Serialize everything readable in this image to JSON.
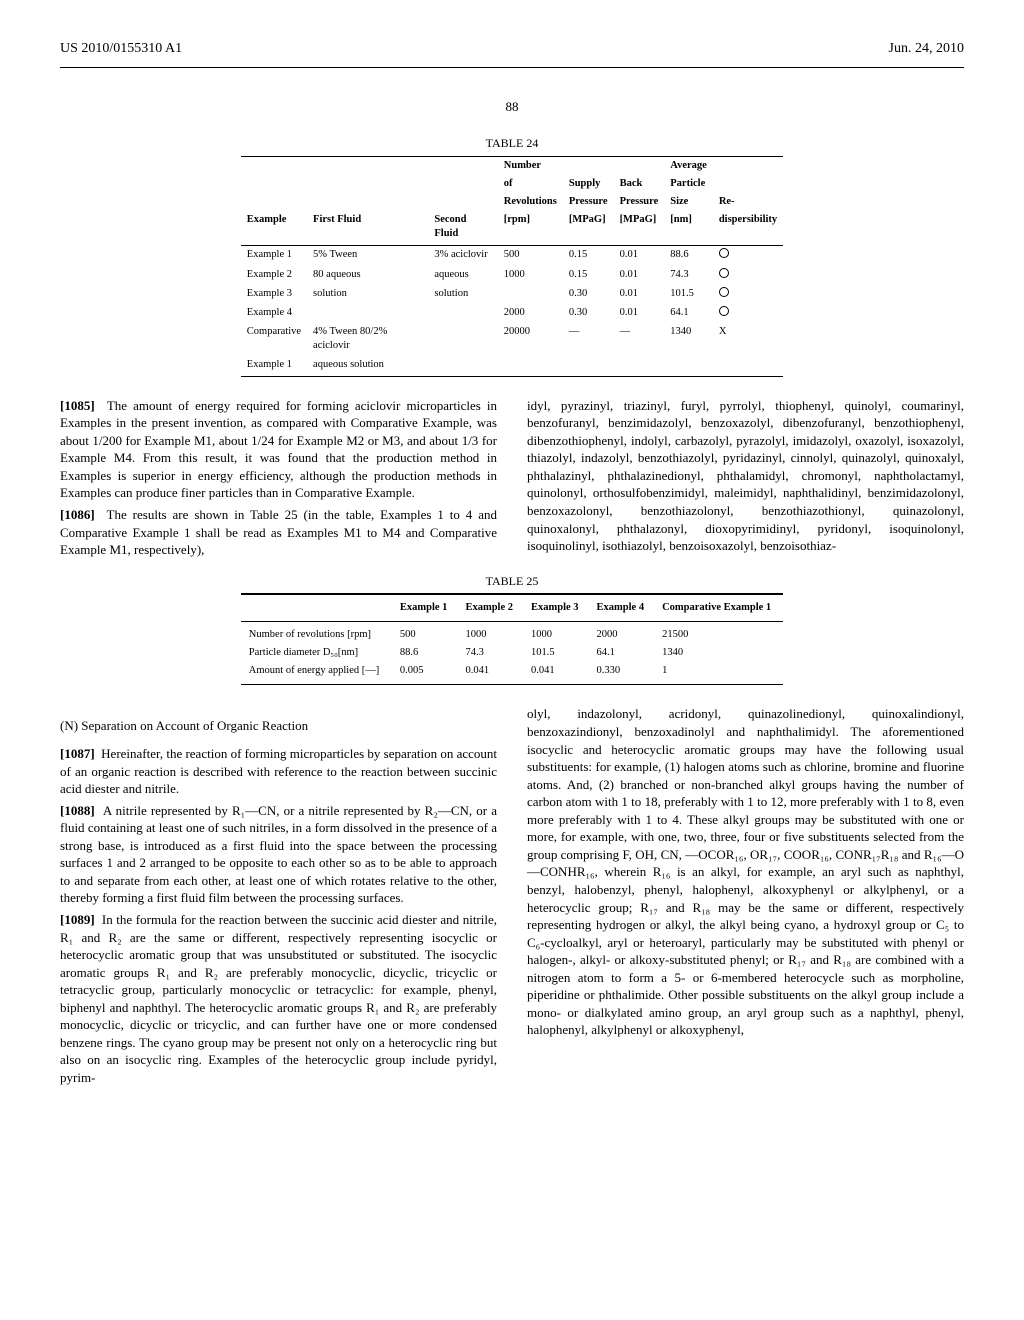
{
  "header": {
    "left": "US 2010/0155310 A1",
    "right": "Jun. 24, 2010"
  },
  "pageNumber": "88",
  "table24": {
    "title": "TABLE 24",
    "headers": {
      "r1": [
        "",
        "",
        "",
        "Number",
        "",
        "",
        "Average",
        ""
      ],
      "r2": [
        "",
        "",
        "",
        "of",
        "Supply",
        "Back",
        "Particle",
        ""
      ],
      "r3": [
        "",
        "",
        "",
        "Revolutions",
        "Pressure",
        "Pressure",
        "Size",
        "Re-"
      ],
      "r4": [
        "Example",
        "First Fluid",
        "Second Fluid",
        "[rpm]",
        "[MPaG]",
        "[MPaG]",
        "[nm]",
        "dispersibility"
      ]
    },
    "rows": [
      [
        "Example 1",
        "5% Tween",
        "3% aciclovir",
        "500",
        "0.15",
        "0.01",
        "88.6",
        "○"
      ],
      [
        "Example 2",
        "80 aqueous",
        "aqueous",
        "1000",
        "0.15",
        "0.01",
        "74.3",
        "○"
      ],
      [
        "Example 3",
        "solution",
        "solution",
        "",
        "0.30",
        "0.01",
        "101.5",
        "○"
      ],
      [
        "Example 4",
        "",
        "",
        "2000",
        "0.30",
        "0.01",
        "64.1",
        "○"
      ],
      [
        "Comparative",
        "4% Tween 80/2% aciclovir",
        "",
        "20000",
        "—",
        "—",
        "1340",
        "X"
      ],
      [
        "Example 1",
        "aqueous solution",
        "",
        "",
        "",
        "",
        "",
        ""
      ]
    ]
  },
  "para1085": {
    "num": "[1085]",
    "text": "The amount of energy required for forming aciclovir microparticles in Examples in the present invention, as compared with Comparative Example, was about 1/200 for Example M1, about 1/24 for Example M2 or M3, and about 1/3 for Example M4. From this result, it was found that the production method in Examples is superior in energy efficiency, although the production methods in Examples can produce finer particles than in Comparative Example."
  },
  "para1086": {
    "num": "[1086]",
    "text": "The results are shown in Table 25 (in the table, Examples 1 to 4 and Comparative Example 1 shall be read as Examples M1 to M4 and Comparative Example M1, respectively),"
  },
  "rightColText1": "idyl, pyrazinyl, triazinyl, furyl, pyrrolyl, thiophenyl, quinolyl, coumarinyl, benzofuranyl, benzimidazolyl, benzoxazolyl, dibenzofuranyl, benzothiophenyl, dibenzothiophenyl, indolyl, carbazolyl, pyrazolyl, imidazolyl, oxazolyl, isoxazolyl, thiazolyl, indazolyl, benzothiazolyl, pyridazinyl, cinnolyl, quinazolyl, quinoxalyl, phthalazinyl, phthalazinedionyl, phthalamidyl, chromonyl, naphtholactamyl, quinolonyl, orthosulfobenzimidyl, maleimidyl, naphthalidinyl, benzimidazolonyl, benzoxazolonyl, benzothiazolonyl, benzothiazothionyl, quinazolonyl, quinoxalonyl, phthalazonyl, dioxopyrimidinyl, pyridonyl, isoquinolonyl, isoquinolinyl, isothiazolyl, benzoisoxazolyl, benzoisothiaz-",
  "table25": {
    "title": "TABLE 25",
    "headers": [
      "",
      "Example 1",
      "Example 2",
      "Example 3",
      "Example 4",
      "Comparative Example 1"
    ],
    "rows": [
      [
        "Number of revolutions [rpm]",
        "500",
        "1000",
        "1000",
        "2000",
        "21500"
      ],
      [
        "Particle diameter D₅₀[nm]",
        "88.6",
        "74.3",
        "101.5",
        "64.1",
        "1340"
      ],
      [
        "Amount of energy applied [—]",
        "0.005",
        "0.041",
        "0.041",
        "0.330",
        "1"
      ]
    ]
  },
  "sectionN": "(N) Separation on Account of Organic Reaction",
  "para1087": {
    "num": "[1087]",
    "text": "Hereinafter, the reaction of forming microparticles by separation on account of an organic reaction is described with reference to the reaction between succinic acid diester and nitrile."
  },
  "para1088": {
    "num": "[1088]",
    "text": "A nitrile represented by R₁—CN, or a nitrile represented by R₂—CN, or a fluid containing at least one of such nitriles, in a form dissolved in the presence of a strong base, is introduced as a first fluid into the space between the processing surfaces 1 and 2 arranged to be opposite to each other so as to be able to approach to and separate from each other, at least one of which rotates relative to the other, thereby forming a first fluid film between the processing surfaces."
  },
  "para1089": {
    "num": "[1089]",
    "text": "In the formula for the reaction between the succinic acid diester and nitrile, R₁ and R₂ are the same or different, respectively representing isocyclic or heterocyclic aromatic group that was unsubstituted or substituted. The isocyclic aromatic groups R₁ and R₂ are preferably monocyclic, dicyclic, tricyclic or tetracyclic group, particularly monocyclic or tetracyclic: for example, phenyl, biphenyl and naphthyl. The heterocyclic aromatic groups R₁ and R₂ are preferably monocyclic, dicyclic or tricyclic, and can further have one or more condensed benzene rings. The cyano group may be present not only on a heterocyclic ring but also on an isocyclic ring. Examples of the heterocyclic group include pyridyl, pyrim-"
  },
  "rightColText2": "olyl, indazolonyl, acridonyl, quinazolinedionyl, quinoxalindionyl, benzoxazindionyl, benzoxadinolyl and naphthalimidyl. The aforementioned isocyclic and heterocyclic aromatic groups may have the following usual substituents: for example, (1) halogen atoms such as chlorine, bromine and fluorine atoms. And, (2) branched or non-branched alkyl groups having the number of carbon atom with 1 to 18, preferably with 1 to 12, more preferably with 1 to 8, even more preferably with 1 to 4. These alkyl groups may be substituted with one or more, for example, with one, two, three, four or five substituents selected from the group comprising F, OH, CN, —OCOR₁₆, OR₁₇, COOR₁₆, CONR₁₇R₁₈ and R₁₆—O—CONHR₁₆, wherein R₁₆ is an alkyl, for example, an aryl such as naphthyl, benzyl, halobenzyl, phenyl, halophenyl, alkoxyphenyl or alkylphenyl, or a heterocyclic group; R₁₇ and R₁₈ may be the same or different, respectively representing hydrogen or alkyl, the alkyl being cyano, a hydroxyl group or C₅ to C₆-cycloalkyl, aryl or heteroaryl, particularly may be substituted with phenyl or halogen-, alkyl- or alkoxy-substituted phenyl; or R₁₇ and R₁₈ are combined with a nitrogen atom to form a 5- or 6-membered heterocycle such as morpholine, piperidine or phthalimide. Other possible substituents on the alkyl group include a mono- or dialkylated amino group, an aryl group such as a naphthyl, phenyl, halophenyl, alkylphenyl or alkoxyphenyl,"
}
